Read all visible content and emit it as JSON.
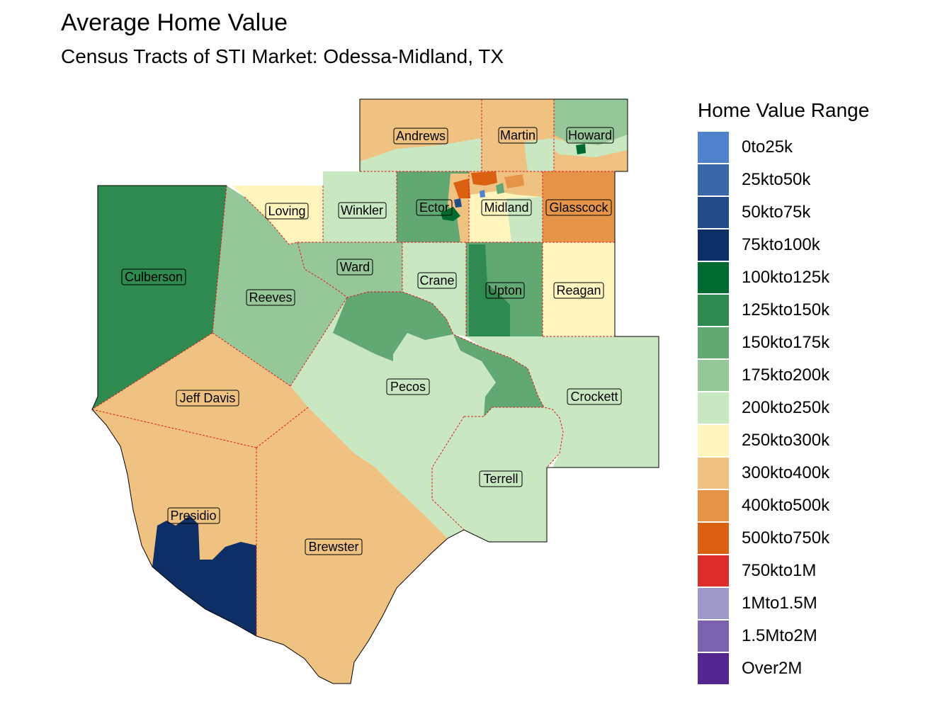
{
  "title": "Average Home Value",
  "subtitle": "Census Tracts of STI Market: Odessa-Midland, TX",
  "legend": {
    "title": "Home Value Range",
    "items": [
      {
        "label": "0to25k",
        "color": "#5082CD"
      },
      {
        "label": "25kto50k",
        "color": "#3A67A7"
      },
      {
        "label": "50kto75k",
        "color": "#214C87"
      },
      {
        "label": "75kto100k",
        "color": "#0D2F66"
      },
      {
        "label": "100kto125k",
        "color": "#006B31"
      },
      {
        "label": "125kto150k",
        "color": "#2F8A50"
      },
      {
        "label": "150kto175k",
        "color": "#61A873"
      },
      {
        "label": "175kto200k",
        "color": "#95C799"
      },
      {
        "label": "200kto250k",
        "color": "#C9E8C2"
      },
      {
        "label": "250kto300k",
        "color": "#FFF5BD"
      },
      {
        "label": "300kto400k",
        "color": "#F0C282"
      },
      {
        "label": "400kto500k",
        "color": "#E59448"
      },
      {
        "label": "500kto750k",
        "color": "#DB6112"
      },
      {
        "label": "750kto1M",
        "color": "#DC2E2B"
      },
      {
        "label": "1Mto1.5M",
        "color": "#9E9AC8"
      },
      {
        "label": "1.5Mto2M",
        "color": "#7A62AC"
      },
      {
        "label": "Over2M",
        "color": "#53278F"
      }
    ]
  },
  "counties": {
    "andrews": "Andrews",
    "martin": "Martin",
    "howard": "Howard",
    "loving": "Loving",
    "winkler": "Winkler",
    "ector": "Ector",
    "midland": "Midland",
    "glasscock": "Glasscock",
    "culberson": "Culberson",
    "ward": "Ward",
    "crane": "Crane",
    "upton": "Upton",
    "reagan": "Reagan",
    "reeves": "Reeves",
    "pecos": "Pecos",
    "crockett": "Crockett",
    "jeff_davis": "Jeff Davis",
    "terrell": "Terrell",
    "presidio": "Presidio",
    "brewster": "Brewster"
  }
}
